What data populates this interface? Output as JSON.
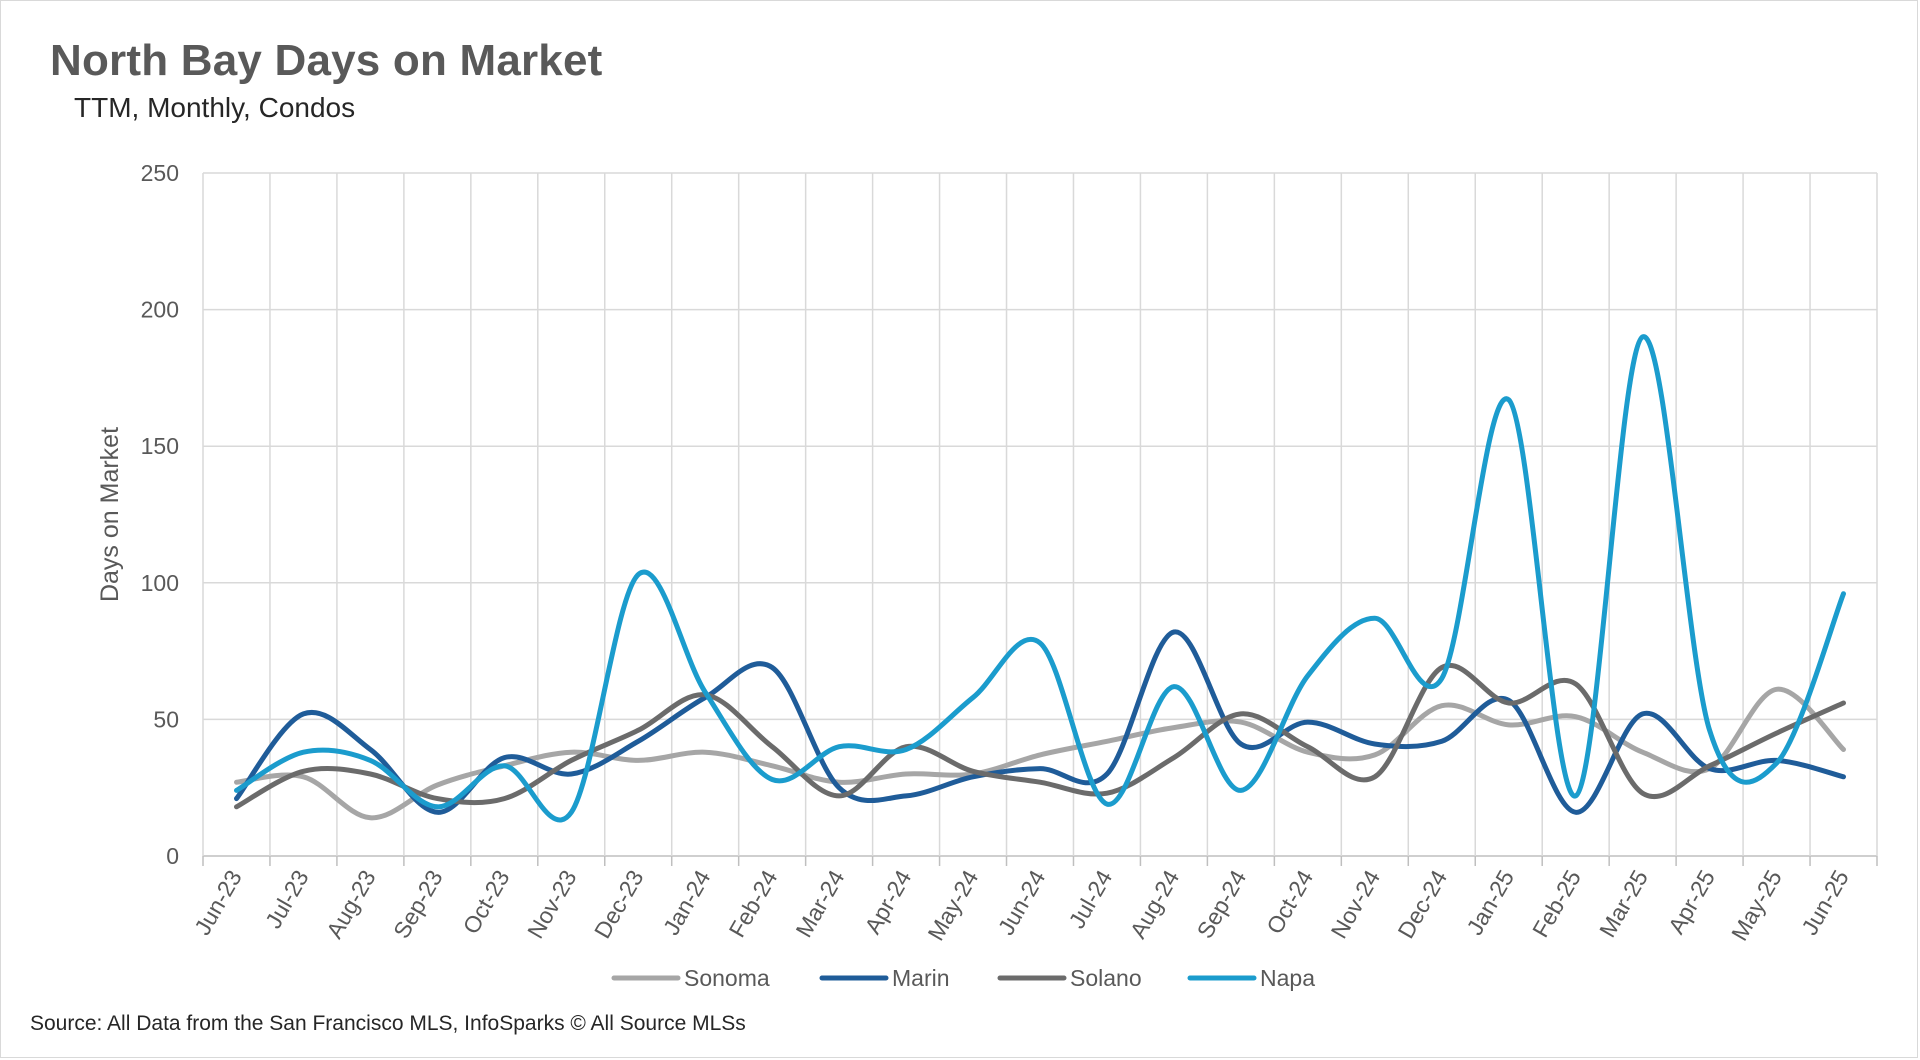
{
  "header": {
    "title": "North Bay Days on Market",
    "subtitle": "TTM, Monthly, Condos"
  },
  "footer": {
    "source": "Source: All Data from the San Francisco MLS, InfoSparks © All Source MLSs"
  },
  "chart_data": {
    "type": "line",
    "title": "North Bay Days on Market",
    "subtitle": "TTM, Monthly, Condos",
    "xlabel": "",
    "ylabel": "Days on Market",
    "ylim": [
      0,
      250
    ],
    "yticks": [
      0,
      50,
      100,
      150,
      200,
      250
    ],
    "grid": true,
    "smooth": true,
    "legend_position": "bottom",
    "categories": [
      "Jun-23",
      "Jul-23",
      "Aug-23",
      "Sep-23",
      "Oct-23",
      "Nov-23",
      "Dec-23",
      "Jan-24",
      "Feb-24",
      "Mar-24",
      "Apr-24",
      "May-24",
      "Jun-24",
      "Jul-24",
      "Aug-24",
      "Sep-24",
      "Oct-24",
      "Nov-24",
      "Dec-24",
      "Jan-25",
      "Feb-25",
      "Mar-25",
      "Apr-25",
      "May-25",
      "Jun-25"
    ],
    "series": [
      {
        "name": "Sonoma",
        "color": "#a6a6a6",
        "values": [
          27,
          29,
          14,
          26,
          33,
          38,
          35,
          38,
          33,
          27,
          30,
          30,
          37,
          42,
          47,
          49,
          38,
          37,
          55,
          48,
          51,
          38,
          32,
          61,
          39
        ]
      },
      {
        "name": "Marin",
        "color": "#1f5c99",
        "values": [
          21,
          52,
          39,
          16,
          36,
          30,
          42,
          58,
          69,
          25,
          22,
          29,
          32,
          30,
          82,
          41,
          49,
          41,
          42,
          57,
          16,
          52,
          32,
          35,
          29
        ]
      },
      {
        "name": "Solano",
        "color": "#6b6b6b",
        "values": [
          18,
          31,
          30,
          21,
          21,
          35,
          46,
          59,
          40,
          22,
          40,
          31,
          27,
          23,
          36,
          52,
          40,
          29,
          69,
          56,
          63,
          23,
          33,
          45,
          56
        ]
      },
      {
        "name": "Napa",
        "color": "#1b9ccd",
        "values": [
          24,
          38,
          35,
          18,
          33,
          16,
          103,
          60,
          28,
          40,
          39,
          58,
          78,
          19,
          62,
          24,
          66,
          87,
          65,
          167,
          22,
          190,
          46,
          34,
          96
        ]
      }
    ]
  }
}
